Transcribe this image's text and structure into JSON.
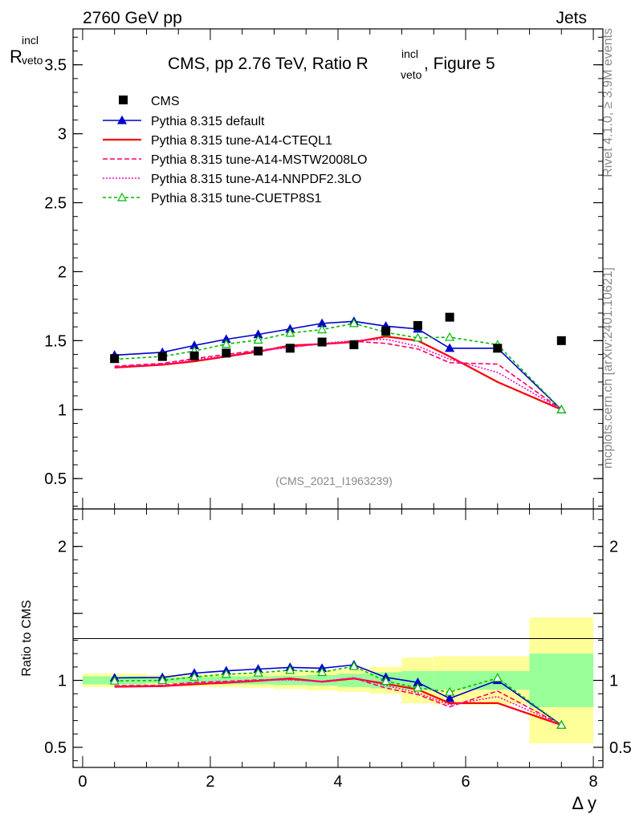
{
  "header": {
    "left": "2760 GeV pp",
    "right": "Jets"
  },
  "title": {
    "main": "CMS, pp 2.76 TeV, Ratio R",
    "sup": "incl",
    "sub": "veto",
    "tail": ", Figure 5"
  },
  "ylabel": {
    "main": "R",
    "sup": "incl",
    "sub": "veto"
  },
  "ratio_ylabel": "Ratio to CMS",
  "xlabel": "Δ y",
  "watermark": "(CMS_2021_I1963239)",
  "side_text_top": "Rivet 4.1.0, ≥ 3.9M events",
  "side_text_bottom": "mcplots.cern.ch [arXiv:2401.10621]",
  "colors": {
    "data": "#000000",
    "default": "#0000cc",
    "cteql1": "#ff0000",
    "mstw": "#ff0066",
    "nnpdf": "#ff00cc",
    "cuetp8s1": "#00bb00",
    "band_outer": "#ffff99",
    "band_inner": "#99ff99"
  },
  "chart_data": {
    "type": "scatter",
    "x_edges": [
      0.0,
      1.0,
      1.5,
      2.0,
      2.5,
      3.0,
      3.5,
      4.0,
      4.5,
      5.0,
      5.5,
      6.0,
      7.0,
      8.0
    ],
    "xlim": [
      -0.15,
      8.15
    ],
    "xticks": [
      "0",
      "2",
      "4",
      "6",
      "8"
    ],
    "main_ylim": [
      0.28,
      3.76
    ],
    "main_yticks": [
      "0.5",
      "1",
      "1.5",
      "2",
      "2.5",
      "3",
      "3.5"
    ],
    "ratio_ylim": [
      0.35,
      2.28
    ],
    "ratio_yticks": [
      "0.5",
      "1",
      "2"
    ],
    "data": {
      "name": "CMS",
      "x": [
        0.5,
        1.25,
        1.75,
        2.25,
        2.75,
        3.25,
        3.75,
        4.25,
        4.75,
        5.25,
        5.75,
        6.5,
        7.5
      ],
      "y": [
        1.37,
        1.385,
        1.39,
        1.41,
        1.425,
        1.445,
        1.49,
        1.47,
        1.57,
        1.61,
        1.67,
        1.445,
        1.5
      ],
      "band_outer": [
        0.05,
        0.04,
        0.045,
        0.05,
        0.055,
        0.065,
        0.075,
        0.085,
        0.1,
        0.17,
        0.18,
        0.18,
        0.47
      ],
      "band_inner": [
        0.03,
        0.02,
        0.025,
        0.03,
        0.03,
        0.035,
        0.04,
        0.05,
        0.06,
        0.07,
        0.07,
        0.07,
        0.2
      ]
    },
    "series": [
      {
        "name": "Pythia 8.315 default",
        "key": "default",
        "values": [
          1.395,
          1.415,
          1.465,
          1.51,
          1.545,
          1.585,
          1.625,
          1.64,
          1.605,
          1.585,
          1.445,
          1.445,
          1.0
        ],
        "dash": "",
        "marker": "triangle-filled"
      },
      {
        "name": "Pythia 8.315 tune-A14-CTEQL1",
        "key": "cteql1",
        "values": [
          1.305,
          1.325,
          1.35,
          1.385,
          1.42,
          1.465,
          1.475,
          1.49,
          1.53,
          1.5,
          1.385,
          1.2,
          1.0
        ],
        "dash": "",
        "marker": "none"
      },
      {
        "name": "Pythia 8.315 tune-A14-MSTW2008LO",
        "key": "mstw",
        "values": [
          1.315,
          1.335,
          1.37,
          1.4,
          1.43,
          1.455,
          1.475,
          1.495,
          1.48,
          1.44,
          1.34,
          1.33,
          1.0
        ],
        "dash": "6,3",
        "marker": "none"
      },
      {
        "name": "Pythia 8.315 tune-A14-NNPDF2.3LO",
        "key": "nnpdf",
        "values": [
          1.31,
          1.33,
          1.36,
          1.39,
          1.425,
          1.45,
          1.48,
          1.5,
          1.51,
          1.46,
          1.365,
          1.27,
          1.0
        ],
        "dash": "2,2",
        "marker": "none"
      },
      {
        "name": "Pythia 8.315 tune-CUETP8S1",
        "key": "cuetp8s1",
        "values": [
          1.365,
          1.385,
          1.425,
          1.475,
          1.505,
          1.555,
          1.58,
          1.625,
          1.56,
          1.52,
          1.525,
          1.47,
          1.0
        ],
        "dash": "4,3",
        "marker": "triangle-open"
      }
    ]
  }
}
